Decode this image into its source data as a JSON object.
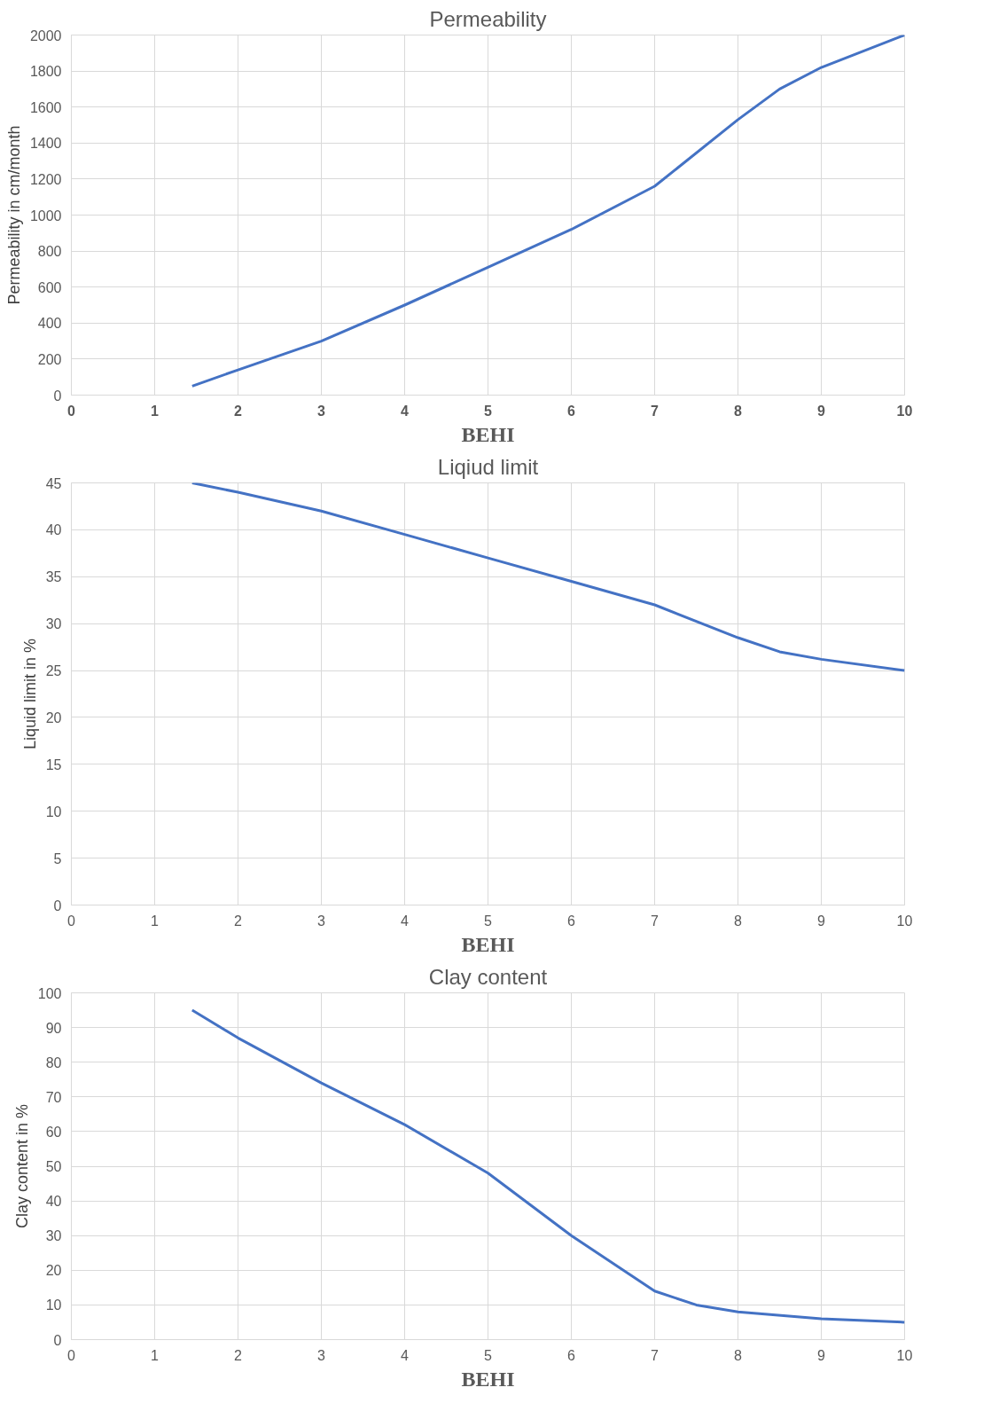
{
  "chart_data": [
    {
      "type": "line",
      "title": "Permeability",
      "xlabel": "BEHI",
      "ylabel": "Permeability in cm/month",
      "x": [
        1.45,
        2,
        3,
        4,
        5,
        6,
        7,
        8,
        8.5,
        9,
        10
      ],
      "series": [
        {
          "color": "#4472c4",
          "values": [
            50,
            140,
            300,
            500,
            710,
            920,
            1160,
            1530,
            1700,
            1820,
            2000
          ]
        }
      ],
      "xlim": [
        0,
        10
      ],
      "ylim": [
        0,
        2000
      ],
      "xticks": [
        0,
        1,
        2,
        3,
        4,
        5,
        6,
        7,
        8,
        9,
        10
      ],
      "yticks": [
        0,
        200,
        400,
        600,
        800,
        1000,
        1200,
        1400,
        1600,
        1800,
        2000
      ],
      "grid": true
    },
    {
      "type": "line",
      "title": "Liqiud limit",
      "xlabel": "BEHI",
      "ylabel": "Liquid limit in %",
      "x": [
        1.45,
        2,
        3,
        4,
        5,
        6,
        7,
        8,
        8.5,
        9,
        10
      ],
      "series": [
        {
          "color": "#4472c4",
          "values": [
            45,
            44,
            42,
            39.5,
            37,
            34.5,
            32,
            28.5,
            27,
            26.2,
            25
          ]
        }
      ],
      "xlim": [
        0,
        10
      ],
      "ylim": [
        0,
        45
      ],
      "xticks": [
        0,
        1,
        2,
        3,
        4,
        5,
        6,
        7,
        8,
        9,
        10
      ],
      "yticks": [
        0,
        5,
        10,
        15,
        20,
        25,
        30,
        35,
        40,
        45
      ],
      "grid": true
    },
    {
      "type": "line",
      "title": "Clay content",
      "xlabel": "BEHI",
      "ylabel": "Clay content in %",
      "x": [
        1.45,
        2,
        3,
        4,
        5,
        6,
        7,
        7.5,
        8,
        9,
        10
      ],
      "series": [
        {
          "color": "#4472c4",
          "values": [
            95,
            87,
            74,
            62,
            48,
            30,
            14,
            10,
            8,
            6,
            5
          ]
        }
      ],
      "xlim": [
        0,
        10
      ],
      "ylim": [
        0,
        100
      ],
      "xticks": [
        0,
        1,
        2,
        3,
        4,
        5,
        6,
        7,
        8,
        9,
        10
      ],
      "yticks": [
        0,
        10,
        20,
        30,
        40,
        50,
        60,
        70,
        80,
        90,
        100
      ],
      "grid": true
    }
  ]
}
